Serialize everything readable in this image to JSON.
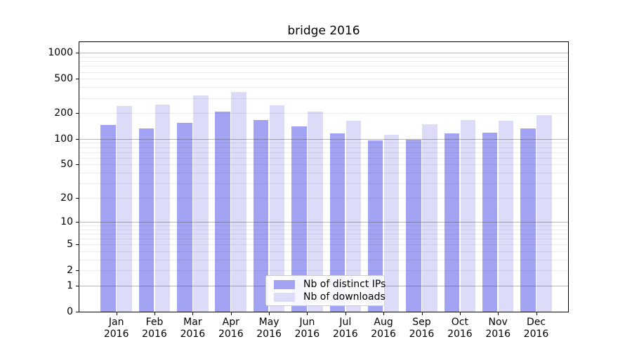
{
  "title": "bridge 2016",
  "chart_data": {
    "type": "bar",
    "title": "bridge 2016",
    "categories": [
      {
        "month": "Jan",
        "year": "2016"
      },
      {
        "month": "Feb",
        "year": "2016"
      },
      {
        "month": "Mar",
        "year": "2016"
      },
      {
        "month": "Apr",
        "year": "2016"
      },
      {
        "month": "May",
        "year": "2016"
      },
      {
        "month": "Jun",
        "year": "2016"
      },
      {
        "month": "Jul",
        "year": "2016"
      },
      {
        "month": "Aug",
        "year": "2016"
      },
      {
        "month": "Sep",
        "year": "2016"
      },
      {
        "month": "Oct",
        "year": "2016"
      },
      {
        "month": "Nov",
        "year": "2016"
      },
      {
        "month": "Dec",
        "year": "2016"
      }
    ],
    "series": [
      {
        "name": "Nb of distinct IPs",
        "color": "#a3a3f3",
        "values": [
          145,
          133,
          155,
          210,
          166,
          140,
          117,
          96,
          97,
          117,
          118,
          133
        ]
      },
      {
        "name": "Nb of downloads",
        "color": "#dcdcf9",
        "values": [
          240,
          252,
          323,
          350,
          248,
          209,
          162,
          112,
          149,
          165,
          162,
          188
        ]
      }
    ],
    "yscale": "log1p",
    "ylim": [
      0,
      1360
    ],
    "yticks": [
      0,
      1,
      2,
      5,
      10,
      20,
      50,
      100,
      200,
      500,
      1000
    ],
    "major_gridlines": [
      1,
      10,
      100,
      1000
    ],
    "minor_gridlines": [
      2,
      3,
      4,
      5,
      6,
      7,
      8,
      9,
      20,
      30,
      40,
      50,
      60,
      70,
      80,
      90,
      200,
      300,
      400,
      500,
      600,
      700,
      800,
      900
    ],
    "grid": "on",
    "legend_position": "lower center"
  },
  "legend": {
    "items": [
      "Nb of distinct IPs",
      "Nb of downloads"
    ]
  },
  "colors": {
    "bar_distinct_ips": "#a3a3f3",
    "bar_downloads": "#dcdcf9",
    "axis": "#000000",
    "grid_major": "#9c9c9c",
    "grid_minor": "#e9e9e9",
    "legend_border": "#cccccc",
    "background": "#ffffff"
  }
}
